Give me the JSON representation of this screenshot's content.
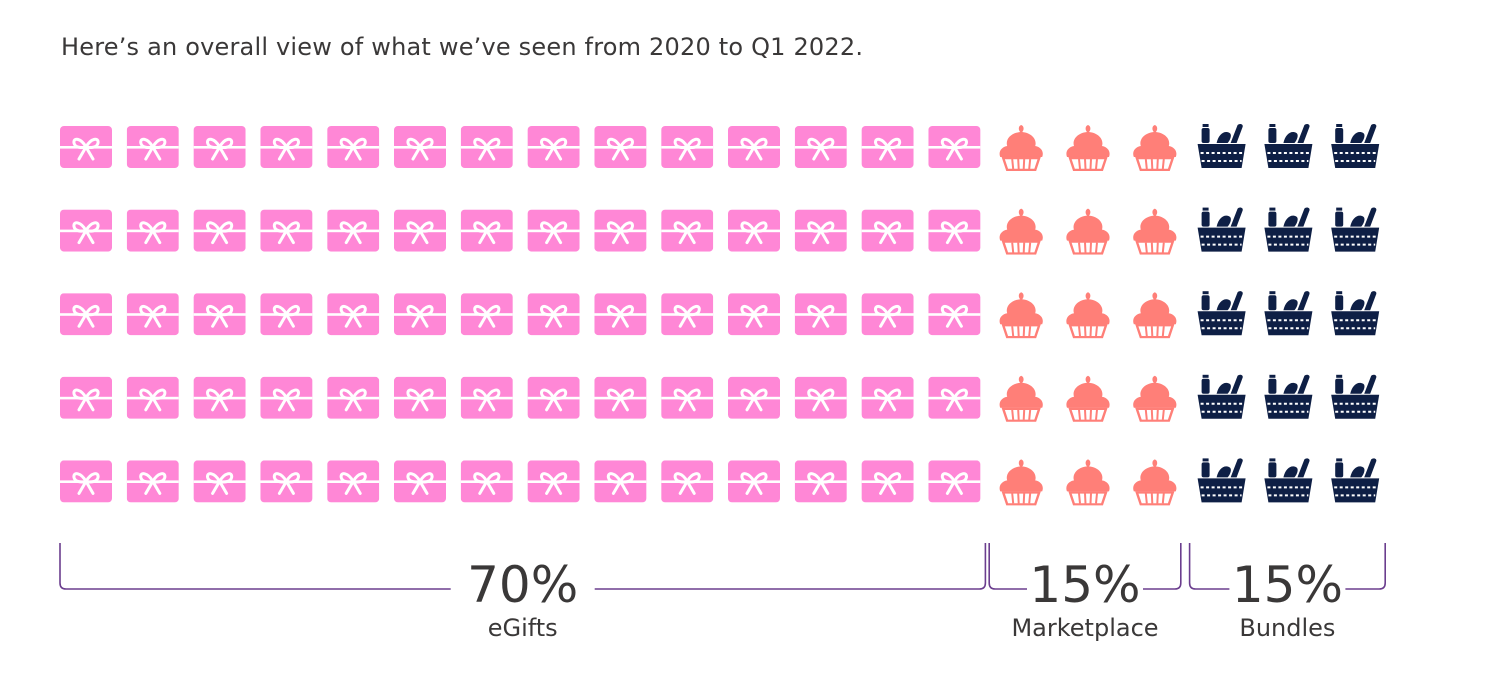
{
  "intro": "Here’s an overall view of what we’ve seen from 2020 to Q1 2022.",
  "chart_data": {
    "type": "waffle",
    "rows": 5,
    "title": "",
    "categories": [
      {
        "name": "eGifts",
        "percent": 70,
        "label": "70%",
        "icon": "gift-card-icon",
        "color": "#ff87d6",
        "icons_per_row": 14
      },
      {
        "name": "Marketplace",
        "percent": 15,
        "label": "15%",
        "icon": "cupcake-icon",
        "color": "#ff7f78",
        "icons_per_row": 3
      },
      {
        "name": "Bundles",
        "percent": 15,
        "label": "15%",
        "icon": "basket-icon",
        "color": "#0e1f45",
        "icons_per_row": 3
      }
    ],
    "bracket_color": "#6b3e8e"
  }
}
